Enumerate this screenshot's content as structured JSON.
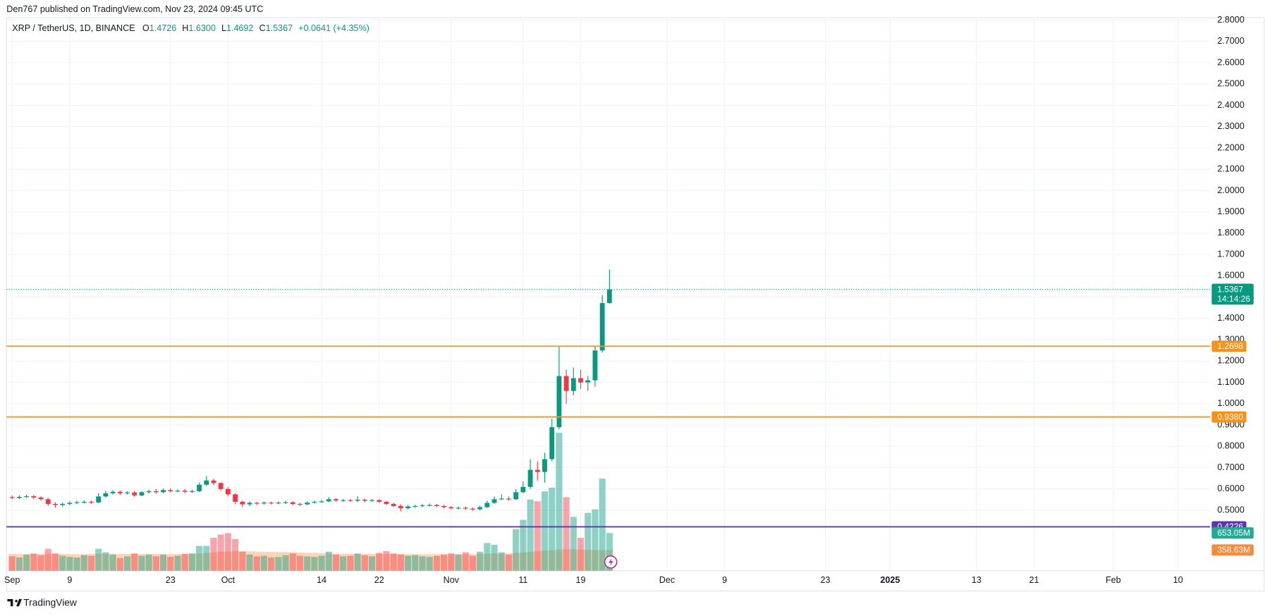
{
  "credit": "Den767 published on TradingView.com, Nov 23, 2024 09:45 UTC",
  "brand": "TradingView",
  "chart_data": {
    "type": "candlestick",
    "legend": {
      "symbol": "XRP / TetherUS, 1D, BINANCE",
      "o_label": "O",
      "open": "1.4726",
      "h_label": "H",
      "high": "1.6300",
      "l_label": "L",
      "low": "1.4692",
      "c_label": "C",
      "close": "1.5367",
      "change": "+0.0641 (+4.35%)"
    },
    "x": [
      "2024-09-01",
      "2024-09-02",
      "2024-09-03",
      "2024-09-04",
      "2024-09-05",
      "2024-09-06",
      "2024-09-07",
      "2024-09-08",
      "2024-09-09",
      "2024-09-10",
      "2024-09-11",
      "2024-09-12",
      "2024-09-13",
      "2024-09-14",
      "2024-09-15",
      "2024-09-16",
      "2024-09-17",
      "2024-09-18",
      "2024-09-19",
      "2024-09-20",
      "2024-09-21",
      "2024-09-22",
      "2024-09-23",
      "2024-09-24",
      "2024-09-25",
      "2024-09-26",
      "2024-09-27",
      "2024-09-28",
      "2024-09-29",
      "2024-09-30",
      "2024-10-01",
      "2024-10-02",
      "2024-10-03",
      "2024-10-04",
      "2024-10-05",
      "2024-10-06",
      "2024-10-07",
      "2024-10-08",
      "2024-10-09",
      "2024-10-10",
      "2024-10-11",
      "2024-10-12",
      "2024-10-13",
      "2024-10-14",
      "2024-10-15",
      "2024-10-16",
      "2024-10-17",
      "2024-10-18",
      "2024-10-19",
      "2024-10-20",
      "2024-10-21",
      "2024-10-22",
      "2024-10-23",
      "2024-10-24",
      "2024-10-25",
      "2024-10-26",
      "2024-10-27",
      "2024-10-28",
      "2024-10-29",
      "2024-10-30",
      "2024-10-31",
      "2024-11-01",
      "2024-11-02",
      "2024-11-03",
      "2024-11-04",
      "2024-11-05",
      "2024-11-06",
      "2024-11-07",
      "2024-11-08",
      "2024-11-09",
      "2024-11-10",
      "2024-11-11",
      "2024-11-12",
      "2024-11-13",
      "2024-11-14",
      "2024-11-15",
      "2024-11-16",
      "2024-11-17",
      "2024-11-18",
      "2024-11-19",
      "2024-11-20",
      "2024-11-21",
      "2024-11-22",
      "2024-11-23"
    ],
    "series": [
      {
        "up_color": "#089981",
        "down_color": "#f23645",
        "open": [
          0.562,
          0.558,
          0.563,
          0.566,
          0.56,
          0.552,
          0.53,
          0.525,
          0.53,
          0.535,
          0.538,
          0.54,
          0.537,
          0.565,
          0.58,
          0.587,
          0.58,
          0.584,
          0.57,
          0.585,
          0.59,
          0.585,
          0.595,
          0.59,
          0.592,
          0.587,
          0.59,
          0.62,
          0.64,
          0.628,
          0.6,
          0.575,
          0.54,
          0.528,
          0.535,
          0.532,
          0.536,
          0.534,
          0.536,
          0.538,
          0.53,
          0.528,
          0.536,
          0.54,
          0.542,
          0.552,
          0.546,
          0.548,
          0.545,
          0.55,
          0.545,
          0.548,
          0.54,
          0.53,
          0.52,
          0.51,
          0.518,
          0.52,
          0.523,
          0.525,
          0.52,
          0.515,
          0.51,
          0.512,
          0.508,
          0.505,
          0.515,
          0.535,
          0.552,
          0.555,
          0.552,
          0.585,
          0.61,
          0.69,
          0.68,
          0.74,
          0.89,
          1.13,
          1.06,
          1.12,
          1.1,
          1.11,
          1.25,
          1.4726
        ],
        "high": [
          0.57,
          0.57,
          0.573,
          0.572,
          0.566,
          0.558,
          0.538,
          0.537,
          0.542,
          0.545,
          0.547,
          0.546,
          0.58,
          0.592,
          0.595,
          0.593,
          0.59,
          0.59,
          0.59,
          0.597,
          0.6,
          0.603,
          0.602,
          0.598,
          0.6,
          0.597,
          0.63,
          0.66,
          0.648,
          0.632,
          0.61,
          0.58,
          0.545,
          0.542,
          0.54,
          0.542,
          0.541,
          0.542,
          0.545,
          0.542,
          0.536,
          0.542,
          0.546,
          0.548,
          0.562,
          0.557,
          0.553,
          0.553,
          0.566,
          0.555,
          0.553,
          0.552,
          0.545,
          0.535,
          0.528,
          0.525,
          0.526,
          0.53,
          0.532,
          0.53,
          0.526,
          0.52,
          0.518,
          0.518,
          0.514,
          0.522,
          0.545,
          0.565,
          0.575,
          0.565,
          0.6,
          0.635,
          0.74,
          0.73,
          0.77,
          0.93,
          1.27,
          1.16,
          1.17,
          1.16,
          1.13,
          1.27,
          1.51,
          1.63
        ],
        "low": [
          0.552,
          0.552,
          0.558,
          0.553,
          0.546,
          0.522,
          0.512,
          0.518,
          0.524,
          0.53,
          0.532,
          0.53,
          0.534,
          0.56,
          0.574,
          0.572,
          0.574,
          0.564,
          0.566,
          0.578,
          0.578,
          0.58,
          0.584,
          0.584,
          0.58,
          0.582,
          0.586,
          0.615,
          0.618,
          0.592,
          0.565,
          0.53,
          0.515,
          0.52,
          0.525,
          0.527,
          0.528,
          0.529,
          0.53,
          0.524,
          0.52,
          0.524,
          0.532,
          0.535,
          0.538,
          0.54,
          0.54,
          0.54,
          0.54,
          0.538,
          0.54,
          0.535,
          0.525,
          0.515,
          0.495,
          0.505,
          0.512,
          0.515,
          0.518,
          0.514,
          0.508,
          0.504,
          0.504,
          0.502,
          0.498,
          0.5,
          0.51,
          0.53,
          0.548,
          0.545,
          0.548,
          0.58,
          0.6,
          0.64,
          0.63,
          0.73,
          0.88,
          1.0,
          1.04,
          1.07,
          1.06,
          1.08,
          1.24,
          1.4692
        ],
        "close": [
          0.558,
          0.563,
          0.566,
          0.56,
          0.552,
          0.53,
          0.525,
          0.53,
          0.535,
          0.538,
          0.54,
          0.537,
          0.565,
          0.58,
          0.587,
          0.58,
          0.584,
          0.57,
          0.585,
          0.59,
          0.585,
          0.595,
          0.59,
          0.592,
          0.587,
          0.59,
          0.62,
          0.64,
          0.628,
          0.6,
          0.575,
          0.54,
          0.528,
          0.535,
          0.532,
          0.536,
          0.534,
          0.536,
          0.538,
          0.53,
          0.528,
          0.536,
          0.54,
          0.542,
          0.552,
          0.546,
          0.548,
          0.545,
          0.55,
          0.545,
          0.548,
          0.54,
          0.53,
          0.52,
          0.51,
          0.518,
          0.52,
          0.523,
          0.525,
          0.52,
          0.515,
          0.51,
          0.512,
          0.508,
          0.505,
          0.515,
          0.535,
          0.552,
          0.555,
          0.552,
          0.585,
          0.61,
          0.69,
          0.68,
          0.74,
          0.89,
          1.13,
          1.06,
          1.12,
          1.1,
          1.11,
          1.25,
          1.4726,
          1.5367
        ],
        "volume": [
          250,
          230,
          280,
          300,
          270,
          380,
          300,
          260,
          240,
          230,
          270,
          260,
          380,
          320,
          280,
          220,
          250,
          300,
          260,
          280,
          250,
          280,
          240,
          260,
          290,
          300,
          430,
          430,
          570,
          625,
          650,
          550,
          330,
          280,
          250,
          260,
          230,
          240,
          270,
          300,
          260,
          250,
          240,
          260,
          330,
          280,
          250,
          260,
          300,
          270,
          250,
          310,
          340,
          300,
          280,
          260,
          270,
          250,
          240,
          260,
          280,
          300,
          280,
          320,
          260,
          330,
          480,
          450,
          320,
          280,
          720,
          880,
          1230,
          1200,
          1370,
          1435,
          2380,
          1270,
          930,
          570,
          1000,
          1060,
          1590,
          653.05
        ],
        "volume_ma": [
          290,
          288,
          287,
          289,
          290,
          292,
          293,
          290,
          288,
          287,
          288,
          289,
          292,
          295,
          294,
          292,
          291,
          292,
          290,
          290,
          289,
          290,
          289,
          290,
          292,
          295,
          300,
          308,
          318,
          330,
          335,
          340,
          338,
          336,
          333,
          330,
          328,
          326,
          324,
          320,
          316,
          312,
          310,
          305,
          300,
          296,
          294,
          292,
          290,
          290,
          291,
          292,
          291,
          290,
          289,
          288,
          288,
          287,
          287,
          288,
          289,
          290,
          290,
          291,
          290,
          292,
          296,
          300,
          302,
          303,
          310,
          318,
          328,
          338,
          348,
          356,
          370,
          374,
          372,
          366,
          362,
          360,
          358,
          358.63
        ],
        "volume_ma_color": "#ffb27a"
      }
    ],
    "xlim": [
      "2024-08-31",
      "2025-02-14"
    ],
    "xticks": [
      {
        "value": "2024-09-01",
        "label": "Sep"
      },
      {
        "value": "2024-09-09",
        "label": "9"
      },
      {
        "value": "2024-09-23",
        "label": "23"
      },
      {
        "value": "2024-10-01",
        "label": "Oct"
      },
      {
        "value": "2024-10-14",
        "label": "14"
      },
      {
        "value": "2024-10-22",
        "label": "22"
      },
      {
        "value": "2024-11-01",
        "label": "Nov"
      },
      {
        "value": "2024-11-11",
        "label": "11"
      },
      {
        "value": "2024-11-19",
        "label": "19"
      },
      {
        "value": "2024-12-01",
        "label": "Dec"
      },
      {
        "value": "2024-12-09",
        "label": "9"
      },
      {
        "value": "2024-12-23",
        "label": "23"
      },
      {
        "value": "2025-01-01",
        "label": "2025"
      },
      {
        "value": "2025-01-13",
        "label": "13"
      },
      {
        "value": "2025-01-21",
        "label": "21"
      },
      {
        "value": "2025-02-01",
        "label": "Feb"
      },
      {
        "value": "2025-02-10",
        "label": "10"
      }
    ],
    "ylim": [
      0.216,
      2.811
    ],
    "yticks": [
      {
        "value": 0.5,
        "label": "0.5000"
      },
      {
        "value": 0.6,
        "label": "0.6000"
      },
      {
        "value": 0.7,
        "label": "0.7000"
      },
      {
        "value": 0.8,
        "label": "0.8000"
      },
      {
        "value": 0.9,
        "label": "0.9000"
      },
      {
        "value": 1.0,
        "label": "1.0000"
      },
      {
        "value": 1.1,
        "label": "1.1000"
      },
      {
        "value": 1.2,
        "label": "1.2000"
      },
      {
        "value": 1.3,
        "label": "1.3000"
      },
      {
        "value": 1.4,
        "label": "1.4000"
      },
      {
        "value": 1.5,
        "label": "1.5000"
      },
      {
        "value": 1.6,
        "label": "1.6000"
      },
      {
        "value": 1.7,
        "label": "1.7000"
      },
      {
        "value": 1.8,
        "label": "1.8000"
      },
      {
        "value": 1.9,
        "label": "1.9000"
      },
      {
        "value": 2.0,
        "label": "2.0000"
      },
      {
        "value": 2.1,
        "label": "2.1000"
      },
      {
        "value": 2.2,
        "label": "2.2000"
      },
      {
        "value": 2.3,
        "label": "2.3000"
      },
      {
        "value": 2.4,
        "label": "2.4000"
      },
      {
        "value": 2.5,
        "label": "2.5000"
      },
      {
        "value": 2.6,
        "label": "2.6000"
      },
      {
        "value": 2.7,
        "label": "2.7000"
      },
      {
        "value": 2.8,
        "label": "2.8000"
      }
    ],
    "grid": true,
    "levels": [
      {
        "value": 1.2698,
        "color": "#f7931a"
      },
      {
        "value": 0.938,
        "label": "0.9380",
        "color": "#f7931a"
      },
      {
        "value": 0.4226,
        "color": "#5e35b1"
      }
    ],
    "last_price": 1.5367,
    "countdown": "14:14:26",
    "volume_tags": [
      {
        "value": 653.05,
        "label": "653.05M",
        "color": "#22ab94"
      },
      {
        "value": 358.63,
        "label": "358.63M",
        "color": "#f68b3c"
      }
    ]
  }
}
